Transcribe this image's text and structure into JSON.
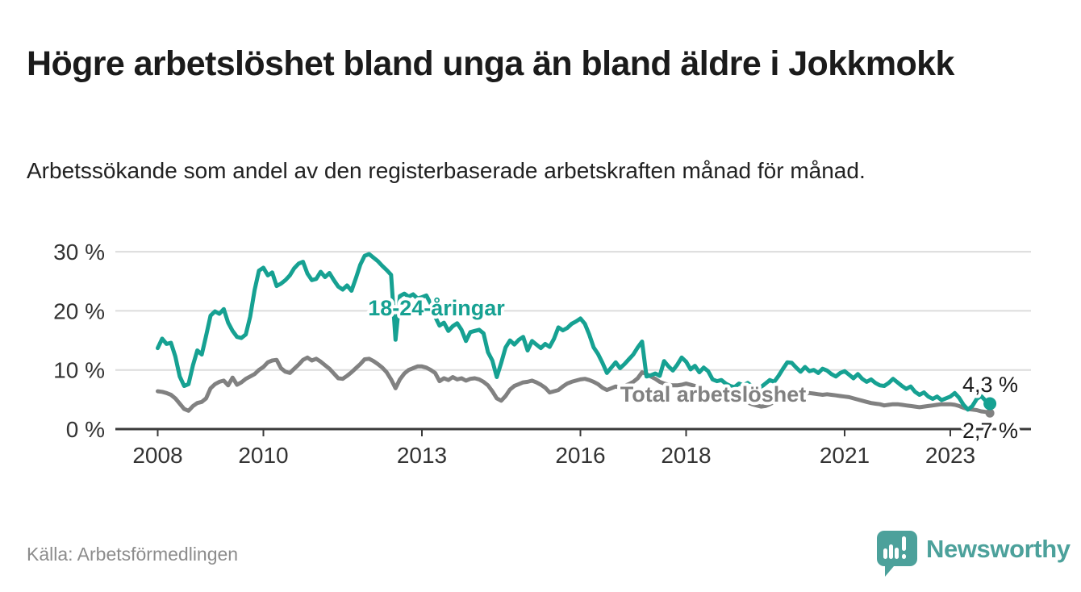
{
  "header": {
    "title": "Högre arbetslöshet bland unga än bland äldre i Jokkmokk",
    "subtitle": "Arbetssökande som andel av den registerbaserade arbetskraften månad för månad."
  },
  "footer": {
    "source": "Källa: Arbetsförmedlingen",
    "brand": "Newsworthy"
  },
  "colors": {
    "youth_teal": "#16a192",
    "total_gray": "#818181",
    "brand_teal": "#4ca19b",
    "grid_gray": "#dcdcdc",
    "axis_dark": "#3b3b3b"
  },
  "chart_data": {
    "type": "line",
    "title": "Högre arbetslöshet bland unga än bland äldre i Jokkmokk",
    "subtitle": "Arbetssökande som andel av den registerbaserade arbetskraften månad för månad.",
    "unit": "%",
    "frequency": "monthly",
    "x_start": "2008-01",
    "x_end": "2023-10",
    "ylim": [
      0,
      32
    ],
    "grid": "horizontal",
    "legend_position": "inline-labels",
    "x_axis": {
      "ticks": [
        {
          "year": 2008,
          "label": "2008"
        },
        {
          "year": 2010,
          "label": "2010"
        },
        {
          "year": 2013,
          "label": "2013"
        },
        {
          "year": 2016,
          "label": "2016"
        },
        {
          "year": 2018,
          "label": "2018"
        },
        {
          "year": 2021,
          "label": "2021"
        },
        {
          "year": 2023,
          "label": "2023"
        }
      ]
    },
    "y_axis": {
      "ticks": [
        {
          "value": 0,
          "label": "0 %"
        },
        {
          "value": 10,
          "label": "10 %"
        },
        {
          "value": 20,
          "label": "20 %"
        },
        {
          "value": 30,
          "label": "30 %"
        }
      ]
    },
    "series": [
      {
        "name": "18-24-åringar",
        "color": "#16a192",
        "end_label": "4,3 %",
        "last_value": 4.3,
        "values": [
          13.7,
          15.3,
          14.4,
          14.6,
          12.3,
          8.9,
          7.3,
          7.6,
          10.8,
          13.3,
          12.6,
          15.8,
          19.2,
          19.9,
          19.5,
          20.3,
          18.0,
          16.6,
          15.6,
          15.4,
          16.0,
          19.0,
          23.5,
          26.8,
          27.3,
          26.0,
          26.5,
          24.2,
          24.6,
          25.2,
          26.0,
          27.2,
          28.0,
          28.3,
          26.3,
          25.2,
          25.4,
          26.6,
          25.7,
          26.4,
          25.2,
          24.1,
          23.6,
          24.3,
          23.4,
          25.5,
          27.8,
          29.3,
          29.6,
          29.0,
          28.4,
          27.6,
          26.9,
          26.1,
          15.1,
          22.5,
          22.9,
          22.4,
          22.8,
          22.1,
          22.3,
          22.6,
          21.2,
          19.0,
          17.5,
          18.0,
          16.6,
          17.4,
          17.9,
          16.8,
          14.9,
          16.4,
          16.6,
          16.8,
          16.2,
          13.0,
          11.6,
          8.8,
          11.2,
          13.8,
          15.0,
          14.3,
          15.1,
          15.6,
          13.3,
          14.9,
          14.3,
          13.7,
          14.4,
          13.9,
          15.3,
          17.2,
          16.7,
          17.1,
          17.8,
          18.2,
          18.7,
          17.8,
          16.0,
          13.8,
          12.7,
          11.2,
          9.5,
          10.4,
          11.3,
          10.3,
          11.0,
          11.8,
          12.6,
          13.8,
          14.8,
          8.9,
          9.1,
          9.4,
          9.0,
          11.5,
          10.6,
          9.9,
          10.9,
          12.1,
          11.4,
          10.1,
          10.7,
          9.6,
          10.4,
          9.8,
          8.4,
          8.1,
          8.3,
          7.7,
          7.3,
          7.1,
          7.7,
          7.4,
          7.8,
          7.2,
          6.8,
          7.1,
          7.7,
          8.3,
          8.0,
          9.0,
          10.2,
          11.3,
          11.2,
          10.4,
          9.7,
          10.5,
          9.8,
          10.0,
          9.5,
          10.2,
          9.9,
          9.3,
          8.9,
          9.5,
          9.8,
          9.2,
          8.6,
          9.3,
          8.5,
          8.0,
          8.4,
          7.8,
          7.4,
          7.3,
          7.8,
          8.5,
          7.9,
          7.3,
          6.8,
          7.2,
          6.3,
          5.8,
          6.2,
          5.5,
          5.1,
          5.5,
          4.9,
          5.2,
          5.5,
          6.1,
          5.3,
          4.1,
          3.3,
          3.9,
          5.1,
          5.6,
          4.8,
          4.3
        ]
      },
      {
        "name": "Total arbetslöshet",
        "color": "#818181",
        "end_label": "2,7 %",
        "last_value": 2.7,
        "values": [
          6.4,
          6.3,
          6.1,
          5.8,
          5.2,
          4.3,
          3.4,
          3.1,
          3.9,
          4.4,
          4.6,
          5.2,
          6.9,
          7.6,
          8.0,
          8.2,
          7.4,
          8.7,
          7.5,
          7.9,
          8.5,
          8.9,
          9.3,
          10.0,
          10.5,
          11.3,
          11.6,
          11.7,
          10.3,
          9.7,
          9.5,
          10.2,
          10.9,
          11.7,
          12.1,
          11.6,
          11.9,
          11.4,
          10.8,
          10.2,
          9.4,
          8.6,
          8.5,
          9.0,
          9.6,
          10.3,
          11.0,
          11.8,
          11.9,
          11.5,
          11.0,
          10.4,
          9.6,
          8.4,
          6.9,
          8.4,
          9.4,
          10.0,
          10.3,
          10.6,
          10.6,
          10.4,
          10.0,
          9.5,
          8.1,
          8.6,
          8.3,
          8.8,
          8.4,
          8.6,
          8.2,
          8.5,
          8.6,
          8.4,
          8.0,
          7.4,
          6.4,
          5.2,
          4.8,
          5.6,
          6.7,
          7.3,
          7.6,
          7.9,
          8.0,
          8.2,
          7.9,
          7.5,
          7.0,
          6.2,
          6.4,
          6.6,
          7.2,
          7.7,
          8.0,
          8.2,
          8.4,
          8.5,
          8.3,
          8.0,
          7.6,
          7.0,
          6.6,
          6.9,
          7.2,
          7.0,
          7.3,
          7.6,
          8.0,
          8.6,
          9.6,
          9.3,
          8.9,
          8.5,
          8.0,
          7.7,
          7.5,
          7.4,
          7.4,
          7.5,
          7.7,
          7.5,
          7.3,
          7.0,
          6.7,
          6.4,
          6.1,
          5.9,
          5.7,
          5.4,
          5.2,
          5.0,
          4.9,
          4.7,
          4.5,
          4.2,
          4.0,
          3.8,
          3.9,
          4.2,
          4.6,
          5.0,
          5.3,
          5.5,
          5.6,
          5.7,
          5.8,
          6.0,
          6.1,
          6.0,
          5.9,
          5.8,
          5.9,
          5.8,
          5.7,
          5.6,
          5.5,
          5.4,
          5.2,
          5.0,
          4.8,
          4.6,
          4.4,
          4.3,
          4.2,
          4.0,
          4.1,
          4.2,
          4.2,
          4.1,
          4.0,
          3.9,
          3.8,
          3.7,
          3.8,
          3.9,
          4.0,
          4.1,
          4.2,
          4.2,
          4.2,
          4.1,
          3.9,
          3.6,
          3.4,
          3.3,
          3.2,
          3.0,
          2.9,
          2.7
        ]
      }
    ]
  }
}
